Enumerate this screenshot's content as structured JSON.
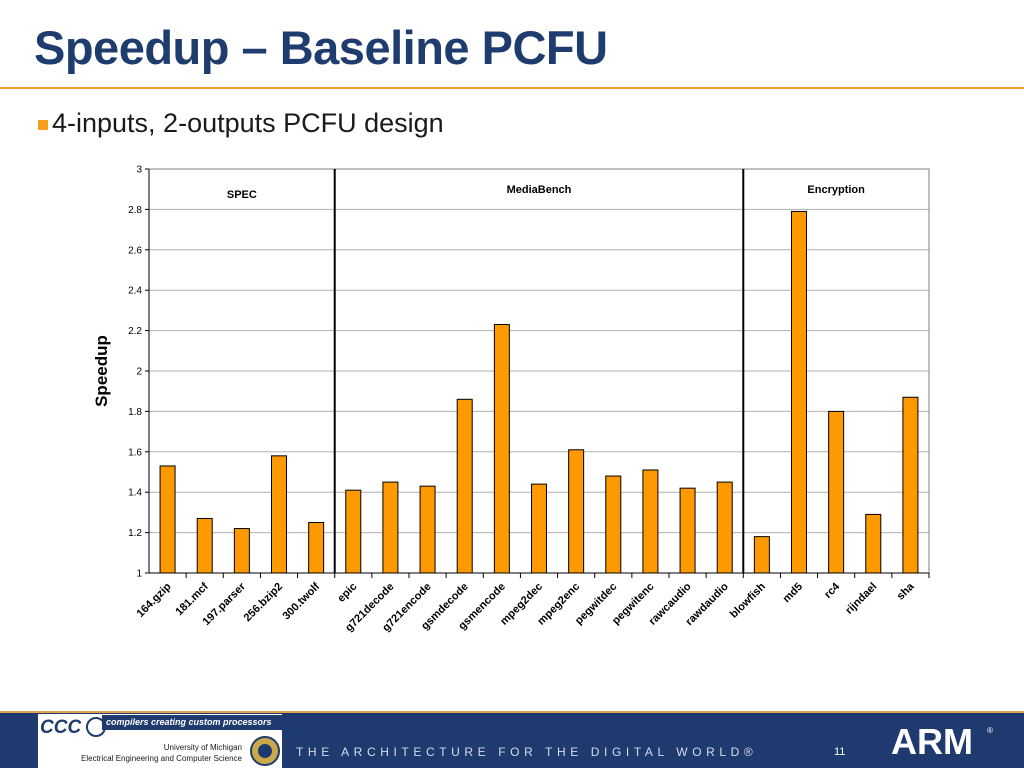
{
  "slide": {
    "title": "Speedup – Baseline PCFU",
    "bullet": "4-inputs, 2-outputs PCFU design",
    "page_number": "11"
  },
  "footer": {
    "logo_text": "CCC",
    "tagline": "compilers creating custom processors",
    "university": "University of Michigan",
    "department": "Electrical Engineering and Computer Science",
    "arm_slogan": "THE ARCHITECTURE FOR THE DIGITAL WORLD®",
    "arm_logo": "ARM",
    "arm_reg": "®"
  },
  "chart_data": {
    "type": "bar",
    "ylabel": "Speedup",
    "ylim": [
      1,
      3
    ],
    "yticks": [
      "1",
      "1.2",
      "1.4",
      "1.6",
      "1.8",
      "2",
      "2.2",
      "2.4",
      "2.6",
      "2.8",
      "3"
    ],
    "grid": true,
    "bar_color": "#ff9900",
    "categories": [
      "164.gzip",
      "181.mcf",
      "197.parser",
      "256.bzip2",
      "300.twolf",
      "epic",
      "g721decode",
      "g721encode",
      "gsmdecode",
      "gsmencode",
      "mpeg2dec",
      "mpeg2enc",
      "pegwitdec",
      "pegwitenc",
      "rawcaudio",
      "rawdaudio",
      "blowfish",
      "md5",
      "rc4",
      "rijndael",
      "sha"
    ],
    "values": [
      1.53,
      1.27,
      1.22,
      1.58,
      1.25,
      1.41,
      1.45,
      1.43,
      1.86,
      2.23,
      1.44,
      1.61,
      1.48,
      1.51,
      1.42,
      1.45,
      1.18,
      2.79,
      1.8,
      1.29,
      1.87
    ],
    "groups": [
      {
        "name": "SPEC",
        "start": 0,
        "end": 4
      },
      {
        "name": "MediaBench",
        "start": 5,
        "end": 15
      },
      {
        "name": "Encryption",
        "start": 16,
        "end": 20
      }
    ]
  }
}
